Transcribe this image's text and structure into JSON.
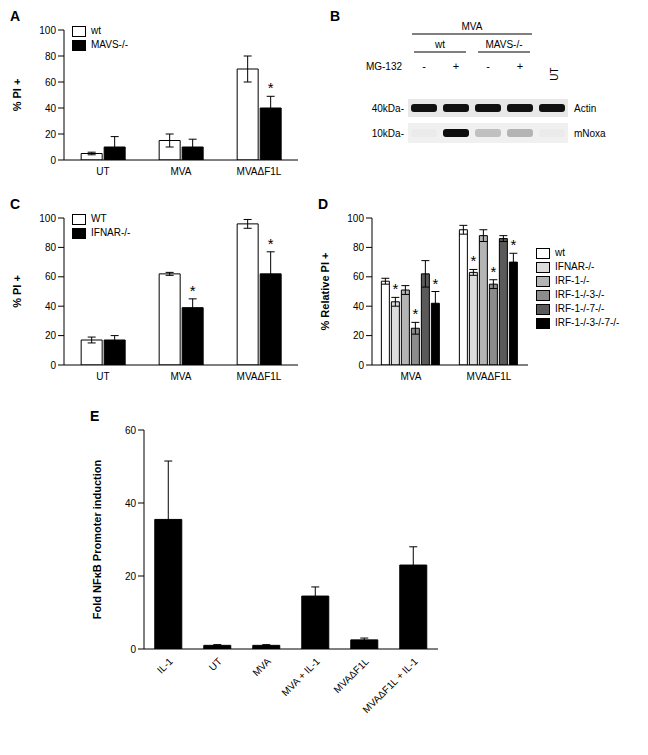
{
  "chart_data": [
    {
      "title": "A",
      "type": "bar",
      "y_label": "% PI +",
      "categories": [
        "UT",
        "MVA",
        "MVAΔF1L"
      ],
      "series": [
        {
          "name": "wt",
          "color": "#ffffff",
          "values": [
            5,
            15,
            70
          ],
          "errors": [
            1,
            5,
            10
          ],
          "annotations": [
            null,
            null,
            null
          ]
        },
        {
          "name": "MAVS-/-",
          "color": "#000000",
          "values": [
            10,
            10,
            40
          ],
          "errors": [
            8,
            6,
            9
          ],
          "annotations": [
            null,
            null,
            "*"
          ]
        }
      ],
      "ylim": [
        0,
        100
      ],
      "yticks": [
        0,
        20,
        40,
        60,
        80,
        100
      ],
      "legend": "upper left"
    },
    {
      "title": "C",
      "type": "bar",
      "y_label": "% PI +",
      "categories": [
        "UT",
        "MVA",
        "MVAΔF1L"
      ],
      "series": [
        {
          "name": "WT",
          "color": "#ffffff",
          "values": [
            17,
            62,
            96
          ],
          "errors": [
            2,
            1,
            3
          ],
          "annotations": [
            null,
            null,
            null
          ]
        },
        {
          "name": "IFNAR-/-",
          "color": "#000000",
          "values": [
            17,
            39,
            62
          ],
          "errors": [
            3,
            6,
            15
          ],
          "annotations": [
            null,
            "*",
            "*"
          ]
        }
      ],
      "ylim": [
        0,
        100
      ],
      "yticks": [
        0,
        20,
        40,
        60,
        80,
        100
      ],
      "legend": "upper left"
    },
    {
      "title": "D",
      "type": "bar",
      "y_label": "% Relative PI +",
      "categories": [
        "MVA",
        "MVAΔF1L"
      ],
      "series": [
        {
          "name": "wt",
          "color": "#ffffff",
          "values": [
            57,
            92
          ],
          "errors": [
            2,
            3
          ],
          "annotations": [
            null,
            null
          ]
        },
        {
          "name": "IFNAR-/-",
          "color": "#dcdcdc",
          "values": [
            43,
            63
          ],
          "errors": [
            3,
            2
          ],
          "annotations": [
            "*",
            "*"
          ]
        },
        {
          "name": "IRF-1-/-",
          "color": "#b4b4b4",
          "values": [
            51,
            88
          ],
          "errors": [
            3,
            4
          ],
          "annotations": [
            null,
            null
          ]
        },
        {
          "name": "IRF-1-/-3-/-",
          "color": "#8c8c8c",
          "values": [
            25,
            55
          ],
          "errors": [
            4,
            3
          ],
          "annotations": [
            "*",
            "*"
          ]
        },
        {
          "name": "IRF-1-/-7-/-",
          "color": "#5a5a5a",
          "values": [
            62,
            86
          ],
          "errors": [
            9,
            2
          ],
          "annotations": [
            null,
            null
          ]
        },
        {
          "name": "IRF-1-/-3-/-7-/-",
          "color": "#000000",
          "values": [
            42,
            70
          ],
          "errors": [
            8,
            6
          ],
          "annotations": [
            "*",
            "*"
          ]
        }
      ],
      "ylim": [
        0,
        100
      ],
      "yticks": [
        0,
        20,
        40,
        60,
        80,
        100
      ],
      "legend": "right"
    },
    {
      "title": "E",
      "type": "bar",
      "y_label": "Fold NFκB Promoter induction",
      "categories": [
        "IL-1",
        "UT",
        "MVA",
        "MVA + IL-1",
        "MVAΔF1L",
        "MVAΔF1L + IL-1"
      ],
      "values": [
        35.5,
        1,
        1,
        14.5,
        2.5,
        23
      ],
      "errors": [
        16,
        0.2,
        0.2,
        2.5,
        0.5,
        5
      ],
      "color": "#000000",
      "ylim": [
        0,
        60
      ],
      "yticks": [
        0,
        20,
        40,
        60
      ]
    }
  ],
  "blot": {
    "title": "B",
    "header": "MVA",
    "groups": [
      "wt",
      "MAVS-/-"
    ],
    "treatment": "MG-132",
    "lanes": [
      "-",
      "+",
      "-",
      "+"
    ],
    "extra_lane": "UT",
    "markers": [
      "40kDa-",
      "10kDa-"
    ],
    "bands": [
      "Actin",
      "mNoxa"
    ]
  }
}
